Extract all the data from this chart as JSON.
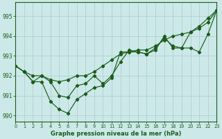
{
  "title": "Graphe pression niveau de la mer (hPa)",
  "background_color": "#cce8e8",
  "grid_color": "#aacccc",
  "line_color": "#1a5c1a",
  "xmin": 0,
  "xmax": 23,
  "ymin": 989.7,
  "ymax": 995.7,
  "yticks": [
    990,
    991,
    992,
    993,
    994,
    995
  ],
  "xticks": [
    0,
    1,
    2,
    3,
    4,
    5,
    6,
    7,
    8,
    9,
    10,
    11,
    12,
    13,
    14,
    15,
    16,
    17,
    18,
    19,
    20,
    21,
    22,
    23
  ],
  "series1_x": [
    0,
    1,
    2,
    3,
    4,
    5,
    6,
    7,
    8,
    9,
    10,
    11,
    12,
    13,
    14,
    15,
    16,
    17,
    18,
    19,
    20,
    21,
    22,
    23
  ],
  "series1_y": [
    992.5,
    992.2,
    992.0,
    992.0,
    991.8,
    991.7,
    991.8,
    992.0,
    992.0,
    992.2,
    992.5,
    992.8,
    993.1,
    993.2,
    993.3,
    993.3,
    993.5,
    993.8,
    994.0,
    994.1,
    994.2,
    994.4,
    994.7,
    995.3
  ],
  "series2_x": [
    0,
    1,
    2,
    3,
    4,
    5,
    6,
    7,
    8,
    9,
    10,
    11,
    12,
    13,
    14,
    15,
    16,
    17,
    18,
    19,
    20,
    21,
    22,
    23
  ],
  "series2_y": [
    992.5,
    992.2,
    991.7,
    991.7,
    990.7,
    990.3,
    990.1,
    990.8,
    991.1,
    991.4,
    991.5,
    991.9,
    993.2,
    993.2,
    993.2,
    993.1,
    993.4,
    993.9,
    993.5,
    993.4,
    994.2,
    994.5,
    994.9,
    995.3
  ],
  "series3_x": [
    0,
    1,
    2,
    3,
    4,
    5,
    6,
    7,
    8,
    9,
    10,
    11,
    12,
    13,
    14,
    15,
    16,
    17,
    18,
    19,
    20,
    21,
    22,
    23
  ],
  "series3_y": [
    992.5,
    992.2,
    991.7,
    992.0,
    991.7,
    991.0,
    990.9,
    991.5,
    991.6,
    992.0,
    991.6,
    992.0,
    992.7,
    993.3,
    993.2,
    993.1,
    993.3,
    994.0,
    993.4,
    993.4,
    993.4,
    993.2,
    994.1,
    995.3
  ]
}
